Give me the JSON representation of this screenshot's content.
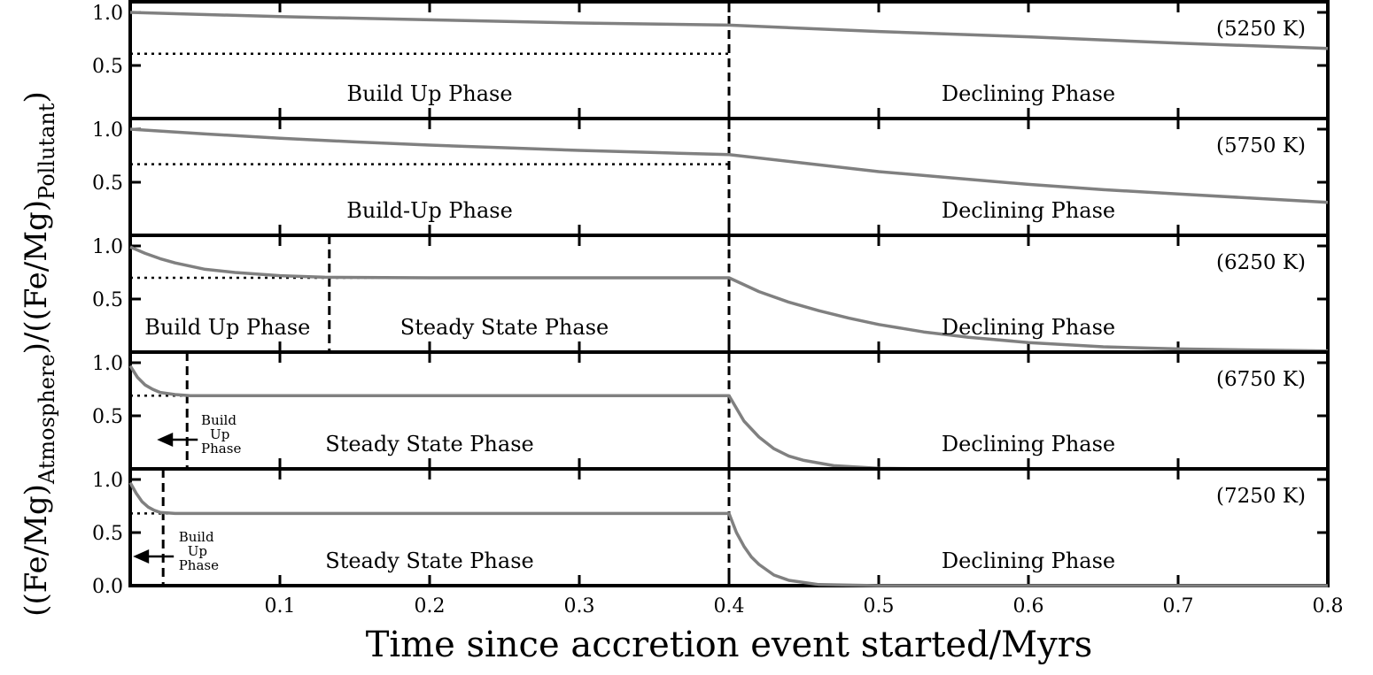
{
  "chart_data": {
    "type": "line",
    "xlabel": "Time since accretion event started/Myrs",
    "ylabel": "((Fe/Mg)Atmosphere)/((Fe/Mg)Pollutant)",
    "ylabel_parts": {
      "open": "((Fe/Mg)",
      "sub1": "Atmosphere",
      "mid": ")/((Fe/Mg)",
      "sub2": "Pollutant",
      "close": ")"
    },
    "xlim": [
      0.0,
      0.8
    ],
    "ylim": [
      0.0,
      1.1
    ],
    "x_ticks": [
      "0.1",
      "0.2",
      "0.3",
      "0.4",
      "0.5",
      "0.6",
      "0.7",
      "0.8"
    ],
    "x_tick_values": [
      0.1,
      0.2,
      0.3,
      0.4,
      0.5,
      0.6,
      0.7,
      0.8
    ],
    "y_ticks_upper": [
      "0.5",
      "1.0"
    ],
    "y_ticks_bottom": [
      "0.0",
      "0.5",
      "1.0"
    ],
    "accretion_end": 0.4,
    "line_color": "#808080",
    "panels": [
      {
        "temperature": "(5250 K)",
        "steady_value": 0.61,
        "phase_boundary": null,
        "phases": [
          {
            "label": "Build Up Phase",
            "x": 0.2
          },
          {
            "label": "Declining Phase",
            "x": 0.6
          }
        ],
        "small_label": null,
        "curve": {
          "x": [
            0.0,
            0.1,
            0.2,
            0.3,
            0.4,
            0.5,
            0.6,
            0.7,
            0.8
          ],
          "y": [
            1.0,
            0.96,
            0.93,
            0.9,
            0.88,
            0.82,
            0.77,
            0.71,
            0.66
          ]
        }
      },
      {
        "temperature": "(5750 K)",
        "steady_value": 0.67,
        "phase_boundary": null,
        "phases": [
          {
            "label": "Build-Up Phase",
            "x": 0.2
          },
          {
            "label": "Declining Phase",
            "x": 0.6
          }
        ],
        "small_label": null,
        "curve": {
          "x": [
            0.0,
            0.05,
            0.1,
            0.15,
            0.2,
            0.25,
            0.3,
            0.35,
            0.4,
            0.45,
            0.5,
            0.55,
            0.6,
            0.65,
            0.7,
            0.75,
            0.8
          ],
          "y": [
            1.0,
            0.955,
            0.915,
            0.88,
            0.85,
            0.825,
            0.8,
            0.78,
            0.76,
            0.68,
            0.6,
            0.54,
            0.48,
            0.43,
            0.39,
            0.35,
            0.31
          ]
        }
      },
      {
        "temperature": "(6250 K)",
        "steady_value": 0.7,
        "phase_boundary": 0.133,
        "phases": [
          {
            "label": "Build Up Phase",
            "x": 0.065
          },
          {
            "label": "Steady State Phase",
            "x": 0.25
          },
          {
            "label": "Declining Phase",
            "x": 0.6
          }
        ],
        "small_label": null,
        "curve": {
          "x": [
            0.0,
            0.01,
            0.02,
            0.03,
            0.05,
            0.07,
            0.1,
            0.13,
            0.2,
            0.3,
            0.4,
            0.42,
            0.44,
            0.46,
            0.48,
            0.5,
            0.53,
            0.56,
            0.6,
            0.65,
            0.7,
            0.8
          ],
          "y": [
            0.99,
            0.93,
            0.88,
            0.84,
            0.78,
            0.75,
            0.72,
            0.705,
            0.7,
            0.7,
            0.7,
            0.57,
            0.47,
            0.39,
            0.32,
            0.26,
            0.19,
            0.14,
            0.09,
            0.05,
            0.03,
            0.01
          ]
        }
      },
      {
        "temperature": "(6750 K)",
        "steady_value": 0.69,
        "phase_boundary": 0.038,
        "phases": [
          {
            "label": "Steady State Phase",
            "x": 0.2
          },
          {
            "label": "Declining Phase",
            "x": 0.6
          }
        ],
        "small_label": {
          "lines": [
            "Build",
            "Up",
            "Phase"
          ],
          "x": 0.045
        },
        "curve": {
          "x": [
            0.0,
            0.005,
            0.01,
            0.015,
            0.02,
            0.03,
            0.04,
            0.06,
            0.1,
            0.2,
            0.3,
            0.4,
            0.41,
            0.42,
            0.43,
            0.44,
            0.45,
            0.47,
            0.5,
            0.55,
            0.8
          ],
          "y": [
            0.97,
            0.86,
            0.79,
            0.75,
            0.72,
            0.7,
            0.69,
            0.69,
            0.69,
            0.69,
            0.69,
            0.69,
            0.45,
            0.3,
            0.19,
            0.12,
            0.08,
            0.03,
            0.005,
            0.0,
            0.0
          ]
        }
      },
      {
        "temperature": "(7250 K)",
        "steady_value": 0.68,
        "phase_boundary": 0.022,
        "phases": [
          {
            "label": "Steady State Phase",
            "x": 0.2
          },
          {
            "label": "Declining Phase",
            "x": 0.6
          }
        ],
        "small_label": {
          "lines": [
            "Build",
            "Up",
            "Phase"
          ],
          "x": 0.03
        },
        "curve": {
          "x": [
            0.0,
            0.004,
            0.008,
            0.012,
            0.016,
            0.02,
            0.03,
            0.1,
            0.2,
            0.3,
            0.4,
            0.405,
            0.41,
            0.415,
            0.42,
            0.43,
            0.44,
            0.46,
            0.5,
            0.8
          ],
          "y": [
            0.97,
            0.87,
            0.79,
            0.74,
            0.71,
            0.69,
            0.68,
            0.68,
            0.68,
            0.68,
            0.68,
            0.5,
            0.37,
            0.27,
            0.2,
            0.1,
            0.05,
            0.01,
            0.0,
            0.0
          ]
        }
      }
    ]
  }
}
